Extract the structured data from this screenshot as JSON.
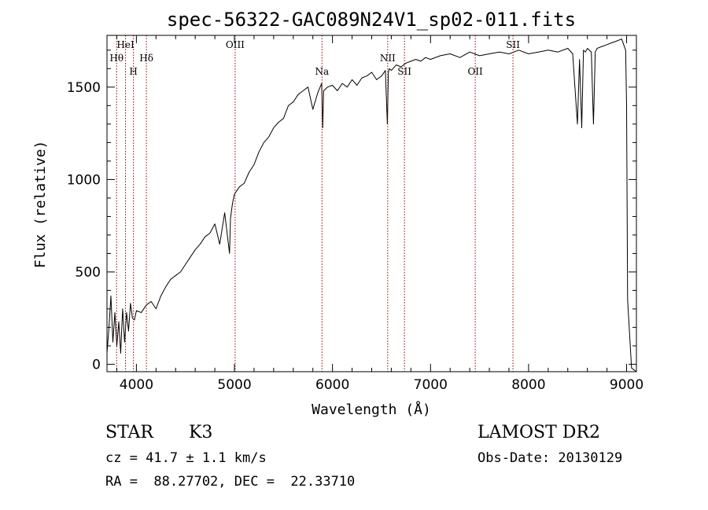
{
  "chart_data": {
    "type": "line",
    "title": "spec-56322-GAC089N24V1_sp02-011.fits",
    "xlabel": "Wavelength (Å)",
    "ylabel": "Flux (relative)",
    "xlim": [
      3700,
      9100
    ],
    "ylim": [
      -40,
      1780
    ],
    "xticks": [
      4000,
      5000,
      6000,
      7000,
      8000,
      9000
    ],
    "yticks": [
      0,
      500,
      1000,
      1500
    ],
    "grid": false,
    "series": [
      {
        "x": [
          3700,
          3720,
          3740,
          3760,
          3780,
          3800,
          3820,
          3840,
          3860,
          3880,
          3900,
          3920,
          3940,
          3960,
          3980,
          4000,
          4050,
          4100,
          4150,
          4200,
          4250,
          4300,
          4350,
          4400,
          4450,
          4500,
          4550,
          4600,
          4650,
          4700,
          4750,
          4800,
          4850,
          4900,
          4950,
          4960,
          4980,
          5000,
          5050,
          5100,
          5150,
          5200,
          5250,
          5300,
          5350,
          5400,
          5450,
          5500,
          5550,
          5600,
          5650,
          5700,
          5750,
          5800,
          5850,
          5890,
          5900,
          5910,
          5950,
          6000,
          6050,
          6100,
          6150,
          6200,
          6250,
          6300,
          6350,
          6400,
          6450,
          6500,
          6540,
          6560,
          6570,
          6580,
          6600,
          6650,
          6700,
          6750,
          6800,
          6850,
          6900,
          6950,
          7000,
          7100,
          7200,
          7300,
          7400,
          7500,
          7600,
          7700,
          7800,
          7900,
          8000,
          8100,
          8200,
          8300,
          8400,
          8450,
          8498,
          8520,
          8542,
          8560,
          8580,
          8600,
          8640,
          8662,
          8680,
          8700,
          8750,
          8800,
          8850,
          8900,
          8950,
          8990,
          9000,
          9010,
          9050,
          9100
        ],
        "y": [
          60,
          200,
          370,
          120,
          280,
          100,
          230,
          60,
          300,
          120,
          280,
          180,
          330,
          250,
          240,
          290,
          280,
          320,
          340,
          300,
          370,
          420,
          460,
          480,
          500,
          540,
          580,
          620,
          650,
          690,
          710,
          760,
          650,
          820,
          600,
          790,
          870,
          920,
          960,
          980,
          1040,
          1080,
          1150,
          1200,
          1230,
          1280,
          1310,
          1330,
          1400,
          1420,
          1460,
          1480,
          1500,
          1380,
          1470,
          1520,
          1280,
          1480,
          1500,
          1510,
          1480,
          1520,
          1500,
          1540,
          1510,
          1550,
          1560,
          1580,
          1540,
          1560,
          1590,
          1300,
          1580,
          1600,
          1590,
          1620,
          1610,
          1630,
          1640,
          1650,
          1640,
          1660,
          1650,
          1670,
          1680,
          1660,
          1690,
          1670,
          1680,
          1690,
          1680,
          1700,
          1680,
          1690,
          1700,
          1690,
          1710,
          1680,
          1300,
          1650,
          1280,
          1700,
          1690,
          1710,
          1690,
          1300,
          1690,
          1710,
          1720,
          1730,
          1740,
          1750,
          1760,
          1700,
          1400,
          350,
          -20,
          -40
        ]
      }
    ],
    "line_markers": [
      {
        "label": "Hθ",
        "x": 3798,
        "row": 2
      },
      {
        "label": "HeI",
        "x": 3889,
        "row": 1
      },
      {
        "label": "H",
        "x": 3970,
        "row": 3
      },
      {
        "label": "Hδ",
        "x": 4102,
        "row": 2
      },
      {
        "label": "OIII",
        "x": 5007,
        "row": 1
      },
      {
        "label": "Na",
        "x": 5893,
        "row": 3
      },
      {
        "label": "NII",
        "x": 6563,
        "row": 2
      },
      {
        "label": "SII",
        "x": 6734,
        "row": 3
      },
      {
        "label": "OII",
        "x": 7456,
        "row": 3
      },
      {
        "label": "SII",
        "x": 7841,
        "row": 1
      }
    ],
    "colors": {
      "spectrum": "#000000",
      "markers": "#8b0000"
    }
  },
  "footer": {
    "object_class": "STAR",
    "subclass": "K3",
    "redshift": "cz = 41.7 ± 1.1 km/s",
    "coords": "RA =  88.27702, DEC =  22.33710",
    "survey": "LAMOST DR2",
    "obs_date": "Obs-Date: 20130129"
  }
}
